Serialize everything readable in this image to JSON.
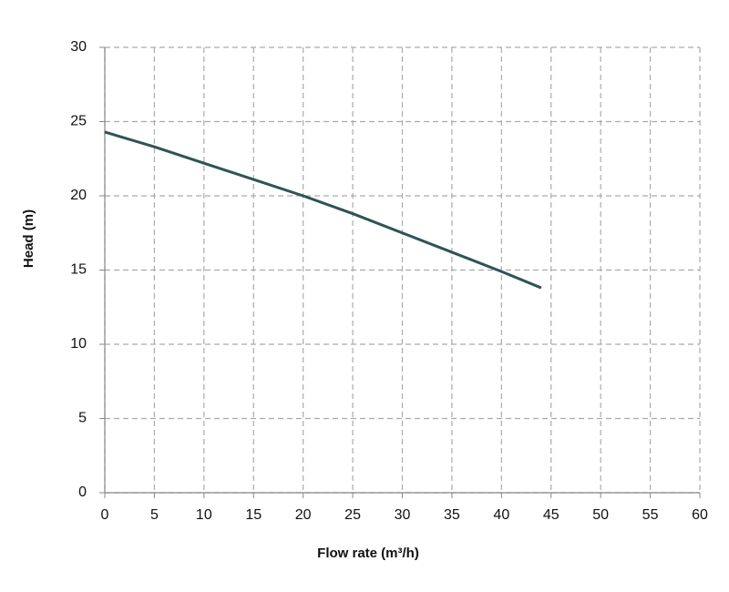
{
  "chart_data": {
    "type": "line",
    "x_label": "Flow rate (m³/h)",
    "y_label": "Head (m)",
    "series": [
      {
        "color": "#2e5457",
        "x": [
          0,
          5,
          10,
          15,
          20,
          25,
          30,
          35,
          40,
          44
        ],
        "values": [
          24.3,
          23.3,
          22.2,
          21.1,
          20.0,
          18.8,
          17.5,
          16.2,
          14.9,
          13.8
        ]
      }
    ],
    "xlim": [
      0,
      60
    ],
    "xticks": [
      0,
      5,
      10,
      15,
      20,
      25,
      30,
      35,
      40,
      45,
      50,
      55,
      60
    ],
    "ylim": [
      0,
      30
    ],
    "yticks": [
      0,
      5,
      10,
      15,
      20,
      25,
      30
    ],
    "grid": true
  }
}
